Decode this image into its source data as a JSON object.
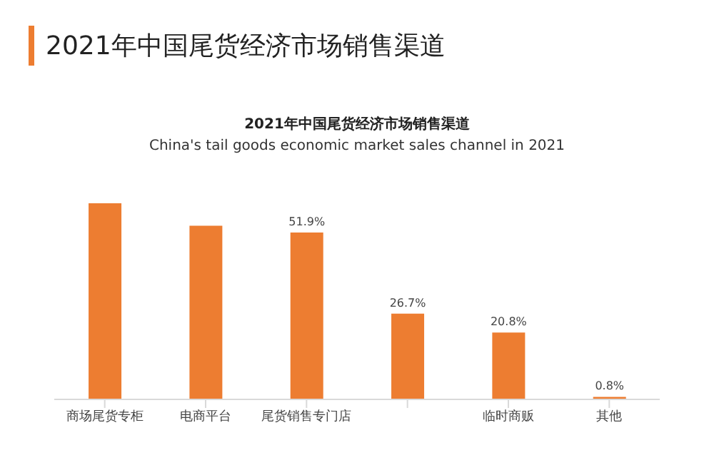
{
  "chart_data": {
    "type": "bar",
    "title": "2021年中国尾货经济市场销售渠道",
    "subtitle": "2021年中国尾货经济市场销售渠道",
    "annotations": [
      "China's tail goods economic market sales channel in 2021"
    ],
    "categories": [
      "商场尾货专柜",
      "电商平台",
      "尾货销售专门店",
      null,
      "临时商贩",
      "其他"
    ],
    "values": [
      61,
      54,
      51.9,
      26.7,
      20.8,
      0.8
    ],
    "value_labels": [
      null,
      null,
      "51.9%",
      "26.7%",
      "20.8%",
      "0.8%"
    ],
    "color": "#ed7d31",
    "grid": false,
    "legend": false
  }
}
